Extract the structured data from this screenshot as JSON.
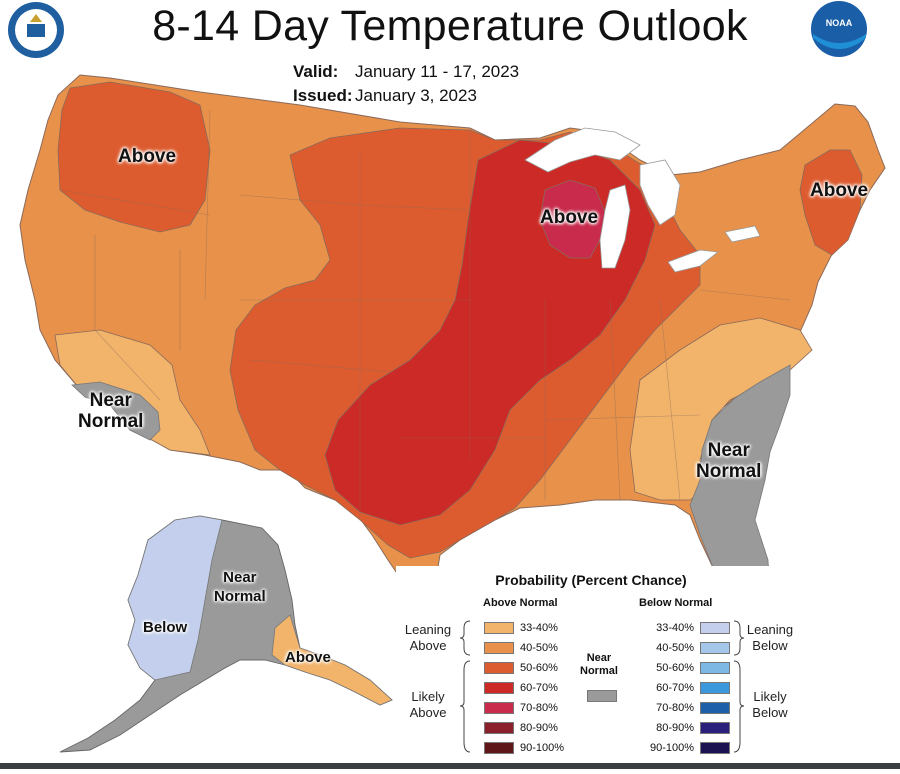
{
  "header": {
    "title": "8-14 Day Temperature Outlook",
    "valid_label": "Valid:",
    "valid_value": "January 11 - 17, 2023",
    "issued_label": "Issued:",
    "issued_value": "January 3, 2023"
  },
  "logos": {
    "left": "commerce-seal",
    "right": "NOAA",
    "right_text": "NOAA"
  },
  "map_labels": {
    "above_nw": "Above",
    "above_midwest": "Above",
    "above_ne": "Above",
    "near_sw_1": "Near",
    "near_sw_2": "Normal",
    "near_se_1": "Near",
    "near_se_2": "Normal",
    "ak_near_1": "Near",
    "ak_near_2": "Normal",
    "ak_below": "Below",
    "ak_above": "Above"
  },
  "colors": {
    "above_33_40": "#f2b46b",
    "above_40_50": "#e8914a",
    "above_50_60": "#dd5c2f",
    "above_60_70": "#cc2a26",
    "above_70_80": "#c82b4c",
    "above_80_90": "#8b1f2b",
    "above_90_100": "#5e1618",
    "below_33_40": "#c3cfec",
    "below_40_50": "#a4c6e9",
    "below_50_60": "#7db8e4",
    "below_60_70": "#3a98dc",
    "below_70_80": "#1d5fa8",
    "below_80_90": "#2a1f7a",
    "below_90_100": "#1c1252",
    "near_normal": "#9a9a9a",
    "great_lakes": "#ffffff"
  },
  "legend": {
    "title": "Probability (Percent Chance)",
    "above_heading": "Above Normal",
    "below_heading": "Below Normal",
    "near_line1": "Near",
    "near_line2": "Normal",
    "leaning_above_1": "Leaning",
    "leaning_above_2": "Above",
    "likely_above_1": "Likely",
    "likely_above_2": "Above",
    "leaning_below_1": "Leaning",
    "leaning_below_2": "Below",
    "likely_below_1": "Likely",
    "likely_below_2": "Below",
    "above_rows": [
      "33-40%",
      "40-50%",
      "50-60%",
      "60-70%",
      "70-80%",
      "80-90%",
      "90-100%"
    ],
    "below_rows": [
      "33-40%",
      "40-50%",
      "50-60%",
      "60-70%",
      "70-80%",
      "80-90%",
      "90-100%"
    ]
  }
}
